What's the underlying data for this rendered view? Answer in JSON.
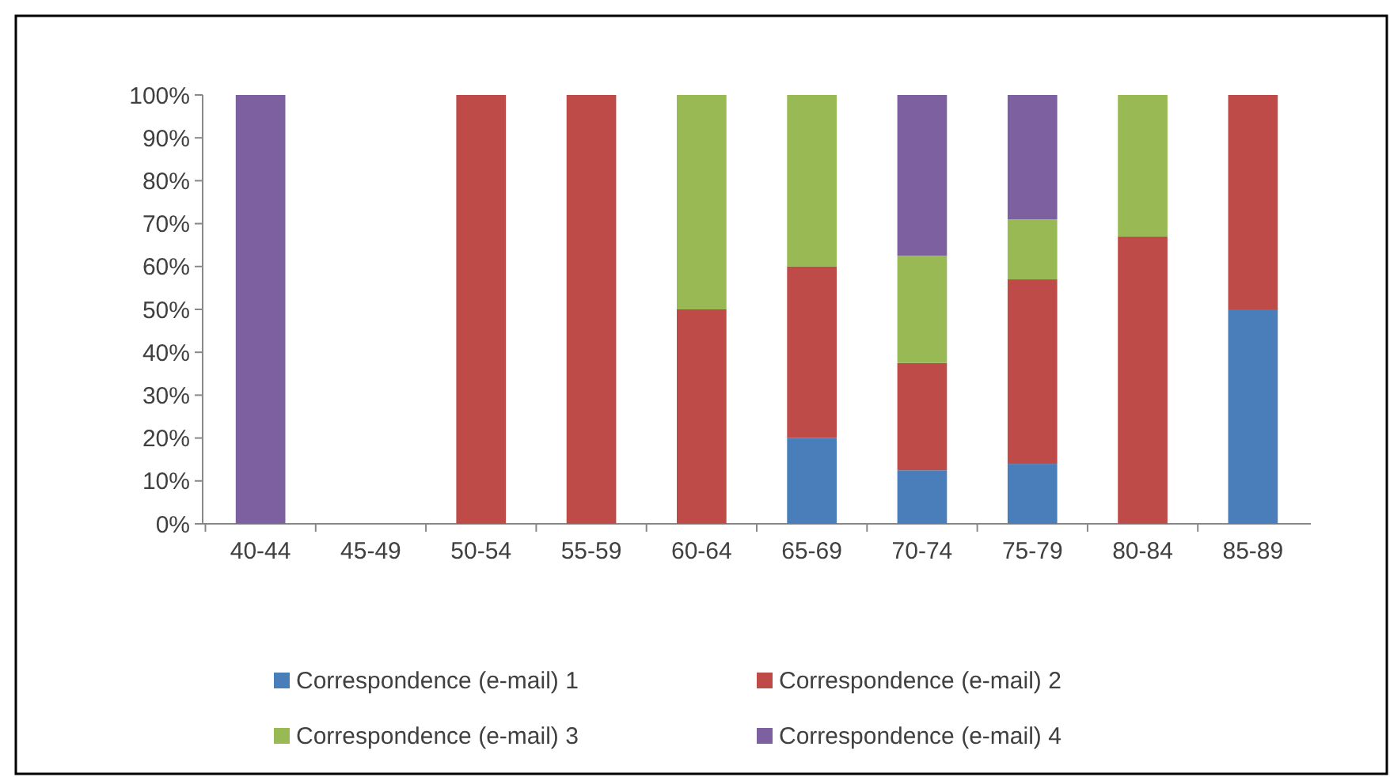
{
  "chart_data": {
    "type": "bar",
    "stacked": true,
    "categories": [
      "40-44",
      "45-49",
      "50-54",
      "55-59",
      "60-64",
      "65-69",
      "70-74",
      "75-79",
      "80-84",
      "85-89"
    ],
    "series": [
      {
        "name": "Correspondence (e-mail) 1",
        "color": "#4a7ebb",
        "values": [
          0,
          0,
          0,
          0,
          0,
          20,
          12.5,
          14,
          0,
          50
        ]
      },
      {
        "name": "Correspondence (e-mail) 2",
        "color": "#be4b48",
        "values": [
          0,
          0,
          100,
          100,
          50,
          40,
          25,
          43,
          67,
          50
        ]
      },
      {
        "name": "Correspondence (e-mail) 3",
        "color": "#98b954",
        "values": [
          0,
          0,
          0,
          0,
          50,
          40,
          25,
          14,
          33,
          0
        ]
      },
      {
        "name": "Correspondence (e-mail) 4",
        "color": "#7d60a0",
        "values": [
          100,
          0,
          0,
          0,
          0,
          0,
          37.5,
          29,
          0,
          0
        ]
      }
    ],
    "ylim": [
      0,
      100
    ],
    "yticks": [
      {
        "value": 0,
        "label": "0%"
      },
      {
        "value": 10,
        "label": "10%"
      },
      {
        "value": 20,
        "label": "20%"
      },
      {
        "value": 30,
        "label": "30%"
      },
      {
        "value": 40,
        "label": "40%"
      },
      {
        "value": 50,
        "label": "50%"
      },
      {
        "value": 60,
        "label": "60%"
      },
      {
        "value": 70,
        "label": "70%"
      },
      {
        "value": 80,
        "label": "80%"
      },
      {
        "value": 90,
        "label": "90%"
      },
      {
        "value": 100,
        "label": "100%"
      }
    ],
    "grid": false,
    "legend": "bottom"
  }
}
